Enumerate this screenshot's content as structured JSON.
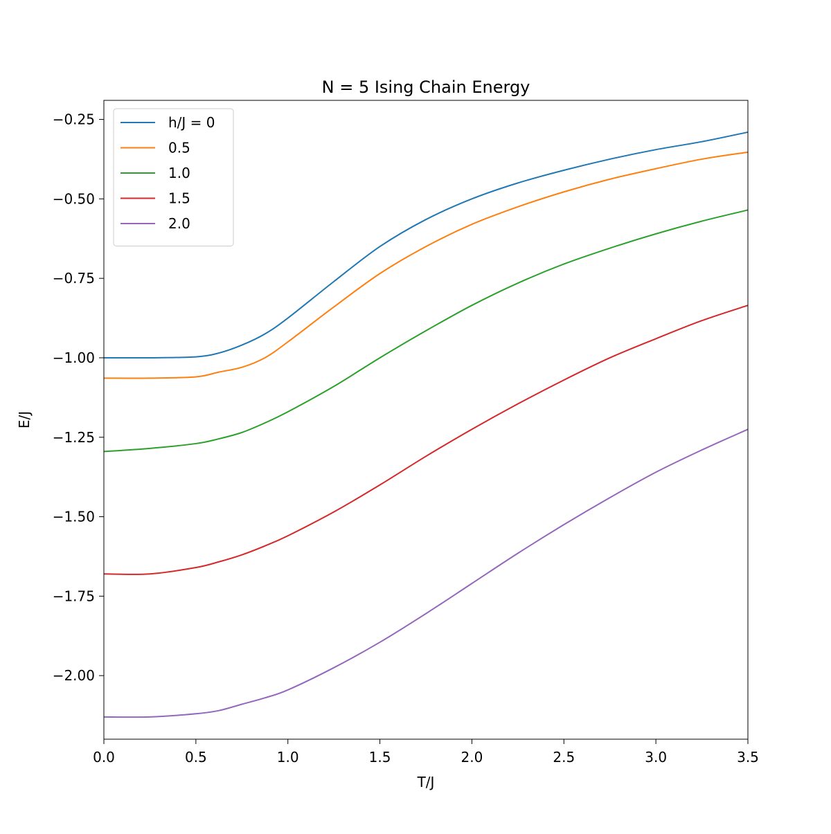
{
  "chart_data": {
    "type": "line",
    "title": "N = 5 Ising Chain Energy",
    "xlabel": "T/J",
    "ylabel": "E/J",
    "xlim": [
      0.0,
      3.5
    ],
    "ylim": [
      -2.2,
      -0.19
    ],
    "xticks": [
      0.0,
      0.5,
      1.0,
      1.5,
      2.0,
      2.5,
      3.0,
      3.5
    ],
    "xtick_labels": [
      "0.0",
      "0.5",
      "1.0",
      "1.5",
      "2.0",
      "2.5",
      "3.0",
      "3.5"
    ],
    "yticks": [
      -2.0,
      -1.75,
      -1.5,
      -1.25,
      -1.0,
      -0.75,
      -0.5,
      -0.25
    ],
    "ytick_labels": [
      "−2.00",
      "−1.75",
      "−1.50",
      "−1.25",
      "−1.00",
      "−0.75",
      "−0.50",
      "−0.25"
    ],
    "grid": false,
    "legend_position": "top-left",
    "x": [
      0.0,
      0.25,
      0.5,
      0.625,
      0.75,
      0.875,
      1.0,
      1.25,
      1.5,
      1.75,
      2.0,
      2.25,
      2.5,
      2.75,
      3.0,
      3.25,
      3.5
    ],
    "series": [
      {
        "name": "h/J = 0",
        "color": "#1f77b4",
        "values": [
          -1.0,
          -1.0,
          -0.997,
          -0.985,
          -0.96,
          -0.925,
          -0.875,
          -0.76,
          -0.65,
          -0.565,
          -0.5,
          -0.45,
          -0.41,
          -0.375,
          -0.345,
          -0.32,
          -0.29
        ]
      },
      {
        "name": "0.5",
        "color": "#ff7f0e",
        "values": [
          -1.064,
          -1.064,
          -1.06,
          -1.045,
          -1.03,
          -1.0,
          -0.95,
          -0.84,
          -0.735,
          -0.65,
          -0.58,
          -0.525,
          -0.478,
          -0.438,
          -0.405,
          -0.375,
          -0.353
        ]
      },
      {
        "name": "1.0",
        "color": "#2ca02c",
        "values": [
          -1.295,
          -1.285,
          -1.27,
          -1.255,
          -1.235,
          -1.205,
          -1.17,
          -1.09,
          -1.0,
          -0.915,
          -0.835,
          -0.765,
          -0.705,
          -0.655,
          -0.61,
          -0.57,
          -0.535
        ]
      },
      {
        "name": "1.5",
        "color": "#d62728",
        "values": [
          -1.68,
          -1.68,
          -1.66,
          -1.642,
          -1.62,
          -1.592,
          -1.56,
          -1.485,
          -1.4,
          -1.31,
          -1.225,
          -1.145,
          -1.07,
          -1.0,
          -0.94,
          -0.883,
          -0.835
        ]
      },
      {
        "name": "2.0",
        "color": "#9467bd",
        "values": [
          -2.13,
          -2.13,
          -2.12,
          -2.11,
          -2.09,
          -2.07,
          -2.045,
          -1.975,
          -1.895,
          -1.805,
          -1.71,
          -1.615,
          -1.525,
          -1.44,
          -1.36,
          -1.29,
          -1.225
        ]
      }
    ]
  }
}
